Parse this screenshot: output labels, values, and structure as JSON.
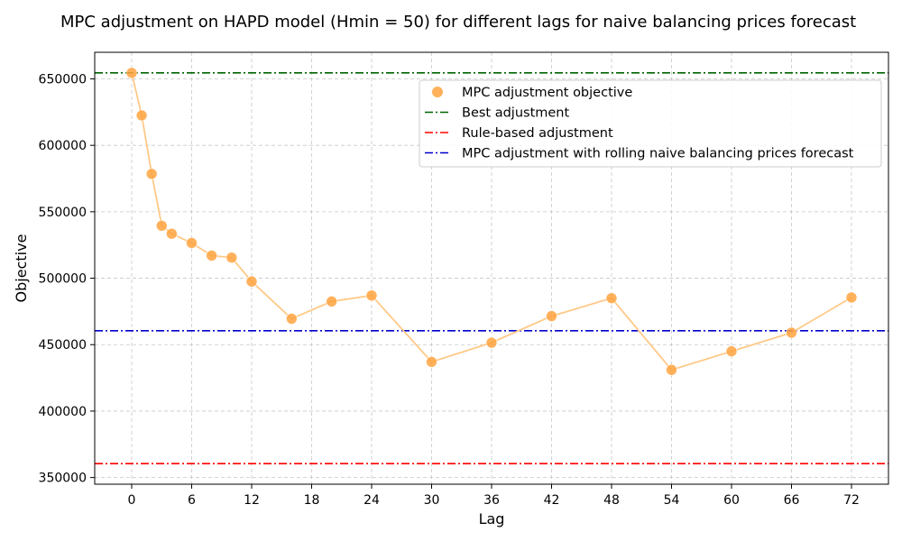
{
  "chart_data": {
    "type": "scatter",
    "title": "MPC adjustment on HAPD model (Hmin = 50) for different lags for naive balancing prices forecast",
    "xlabel": "Lag",
    "ylabel": "Objective",
    "xlim": [
      -3.7,
      75.7
    ],
    "ylim": [
      345000,
      670000
    ],
    "xticks": [
      0,
      6,
      12,
      18,
      24,
      30,
      36,
      42,
      48,
      54,
      60,
      66,
      72
    ],
    "yticks": [
      350000,
      400000,
      450000,
      500000,
      550000,
      600000,
      650000
    ],
    "grid": true,
    "legend_position": "upper right",
    "series": [
      {
        "name": "MPC adjustment objective",
        "color": "#ffa33f",
        "line_color": "#ffc987",
        "x": [
          0,
          1,
          2,
          3,
          4,
          6,
          8,
          10,
          12,
          16,
          20,
          24,
          30,
          36,
          42,
          48,
          54,
          60,
          66,
          72
        ],
        "y": [
          654500,
          622500,
          578500,
          539500,
          533500,
          526500,
          517000,
          515500,
          497500,
          469500,
          482500,
          487000,
          437000,
          451500,
          471500,
          485000,
          431000,
          445000,
          459000,
          485500
        ]
      }
    ],
    "reference_lines": [
      {
        "name": "Best adjustment",
        "y": 654500,
        "color": "#006400"
      },
      {
        "name": "Rule-based adjustment",
        "y": 360500,
        "color": "#ff0000"
      },
      {
        "name": "MPC adjustment with rolling naive balancing prices forecast",
        "y": 460500,
        "color": "#0000cd"
      }
    ]
  }
}
